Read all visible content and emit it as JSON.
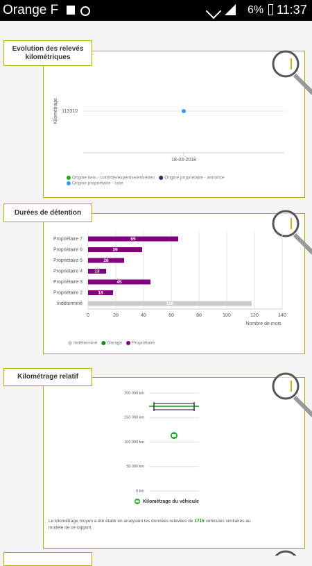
{
  "status_bar": {
    "carrier": "Orange F",
    "battery": "6%",
    "time": "11:37"
  },
  "chart_data": [
    {
      "type": "scatter",
      "title": "Evolution des relevés kilométriques",
      "y_label": "Kilométrage",
      "categories": [
        "18-03-2018"
      ],
      "series": [
        {
          "name": "Origine tiers - contrôle/expertise/entretien",
          "color": "#1fa81f",
          "values": [
            null
          ]
        },
        {
          "name": "Origine propriétaire - annonce",
          "color": "#3d2b5e",
          "values": [
            null
          ]
        },
        {
          "name": "Origine propriétaire - cote",
          "color": "#3399ff",
          "values": [
            113310
          ]
        }
      ],
      "ylim": [
        113250,
        113340
      ],
      "yticks": [
        113310
      ],
      "grid": true
    },
    {
      "type": "bar",
      "orientation": "horizontal",
      "title": "Durées de détention",
      "x_label": "Nombre de mois",
      "categories": [
        "Propriétaire 7",
        "Propriétaire 6",
        "Propriétaire 5",
        "Propriétaire 4",
        "Propriétaire 3",
        "Propriétaire 2",
        "Indéterminé"
      ],
      "series": [
        {
          "name": "Indéterminé",
          "color": "#cccccc",
          "values": [
            null,
            null,
            null,
            null,
            null,
            null,
            118
          ]
        },
        {
          "name": "Garage",
          "color": "#1b8a1b",
          "values": [
            null,
            null,
            null,
            null,
            null,
            null,
            null
          ]
        },
        {
          "name": "Propriétaire",
          "color": "#800080",
          "values": [
            65,
            39,
            26,
            13,
            45,
            18,
            null
          ]
        }
      ],
      "xlim": [
        0,
        140
      ],
      "xticks": [
        0,
        20,
        40,
        60,
        80,
        100,
        120,
        140
      ],
      "grid": true
    },
    {
      "type": "range",
      "title": "Kilométrage relatif",
      "range": {
        "low": 166000,
        "mean": 173000,
        "high": 178700,
        "color": "#3d2b5e",
        "mean_color": "#1b8a1b"
      },
      "vehicle": {
        "name": "Kilométrage du véhicule",
        "value": 113310,
        "color": "#2aa52a"
      },
      "ylim": [
        0,
        200000
      ],
      "yticks": [
        {
          "value": 0,
          "label": "0 km"
        },
        {
          "value": 50000,
          "label": "50 000 km"
        },
        {
          "value": 100000,
          "label": "100 000 km"
        },
        {
          "value": 150000,
          "label": "150 000 km"
        },
        {
          "value": 200000,
          "label": "200 000 km"
        }
      ],
      "grid": true,
      "note": [
        "Le kilométrage moyen a été établi en analysant les données relevées de",
        1715,
        "véhicules similaires au",
        "modèle de ce rapport."
      ]
    }
  ]
}
